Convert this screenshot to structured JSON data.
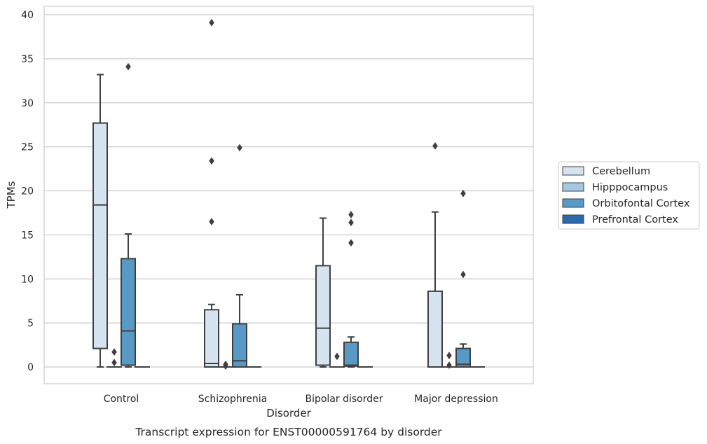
{
  "chart_data": {
    "type": "box",
    "caption": "Transcript expression for ENST00000591764 by disorder",
    "xlabel": "Disorder",
    "ylabel": "TPMs",
    "ylim": [
      -1.9,
      41
    ],
    "yticks": [
      0,
      5,
      10,
      15,
      20,
      25,
      30,
      35,
      40
    ],
    "grid": true,
    "legend_position": "right",
    "categories": [
      "Control",
      "Schizophrenia",
      "Bipolar disorder",
      "Major depression"
    ],
    "series": [
      {
        "name": "Cerebellum",
        "color": "#d6e4f2",
        "boxes": [
          {
            "whislo": 0,
            "q1": 2.1,
            "med": 18.4,
            "q3": 27.7,
            "whishi": 33.2,
            "fliers": []
          },
          {
            "whislo": 0,
            "q1": 0,
            "med": 0.4,
            "q3": 6.5,
            "whishi": 7.1,
            "fliers": [
              16.5,
              23.4,
              39.1
            ]
          },
          {
            "whislo": 0,
            "q1": 0.2,
            "med": 4.4,
            "q3": 11.5,
            "whishi": 16.9,
            "fliers": []
          },
          {
            "whislo": 0,
            "q1": 0,
            "med": 0,
            "q3": 8.6,
            "whishi": 17.6,
            "fliers": [
              25.1
            ]
          }
        ]
      },
      {
        "name": "Hipppocampus",
        "color": "#a5c8e1",
        "boxes": [
          {
            "whislo": 0,
            "q1": 0,
            "med": 0,
            "q3": 0,
            "whishi": 0,
            "fliers": [
              0.5,
              1.7
            ]
          },
          {
            "whislo": 0,
            "q1": 0,
            "med": 0,
            "q3": 0,
            "whishi": 0,
            "fliers": [
              0.1,
              0.3
            ]
          },
          {
            "whislo": 0,
            "q1": 0,
            "med": 0,
            "q3": 0,
            "whishi": 0,
            "fliers": [
              1.2
            ]
          },
          {
            "whislo": 0,
            "q1": 0,
            "med": 0,
            "q3": 0,
            "whishi": 0,
            "fliers": [
              0.2,
              1.3
            ]
          }
        ]
      },
      {
        "name": "Orbitofontal Cortex",
        "color": "#5899c5",
        "boxes": [
          {
            "whislo": 0,
            "q1": 0.2,
            "med": 4.1,
            "q3": 12.3,
            "whishi": 15.1,
            "fliers": [
              34.1
            ]
          },
          {
            "whislo": 0,
            "q1": 0,
            "med": 0.7,
            "q3": 4.9,
            "whishi": 8.2,
            "fliers": [
              24.9
            ]
          },
          {
            "whislo": 0,
            "q1": 0.1,
            "med": 0.2,
            "q3": 2.8,
            "whishi": 3.4,
            "fliers": [
              14.1,
              16.4,
              17.3
            ]
          },
          {
            "whislo": 0,
            "q1": 0,
            "med": 0.3,
            "q3": 2.1,
            "whishi": 2.6,
            "fliers": [
              10.5,
              19.7
            ]
          }
        ]
      },
      {
        "name": "Prefrontal Cortex",
        "color": "#2b6aad",
        "boxes": [
          {
            "whislo": 0,
            "q1": 0,
            "med": 0,
            "q3": 0,
            "whishi": 0,
            "fliers": []
          },
          {
            "whislo": 0,
            "q1": 0,
            "med": 0,
            "q3": 0,
            "whishi": 0,
            "fliers": []
          },
          {
            "whislo": 0,
            "q1": 0,
            "med": 0,
            "q3": 0,
            "whishi": 0,
            "fliers": []
          },
          {
            "whislo": 0,
            "q1": 0,
            "med": 0,
            "q3": 0,
            "whishi": 0,
            "fliers": []
          }
        ]
      }
    ]
  }
}
